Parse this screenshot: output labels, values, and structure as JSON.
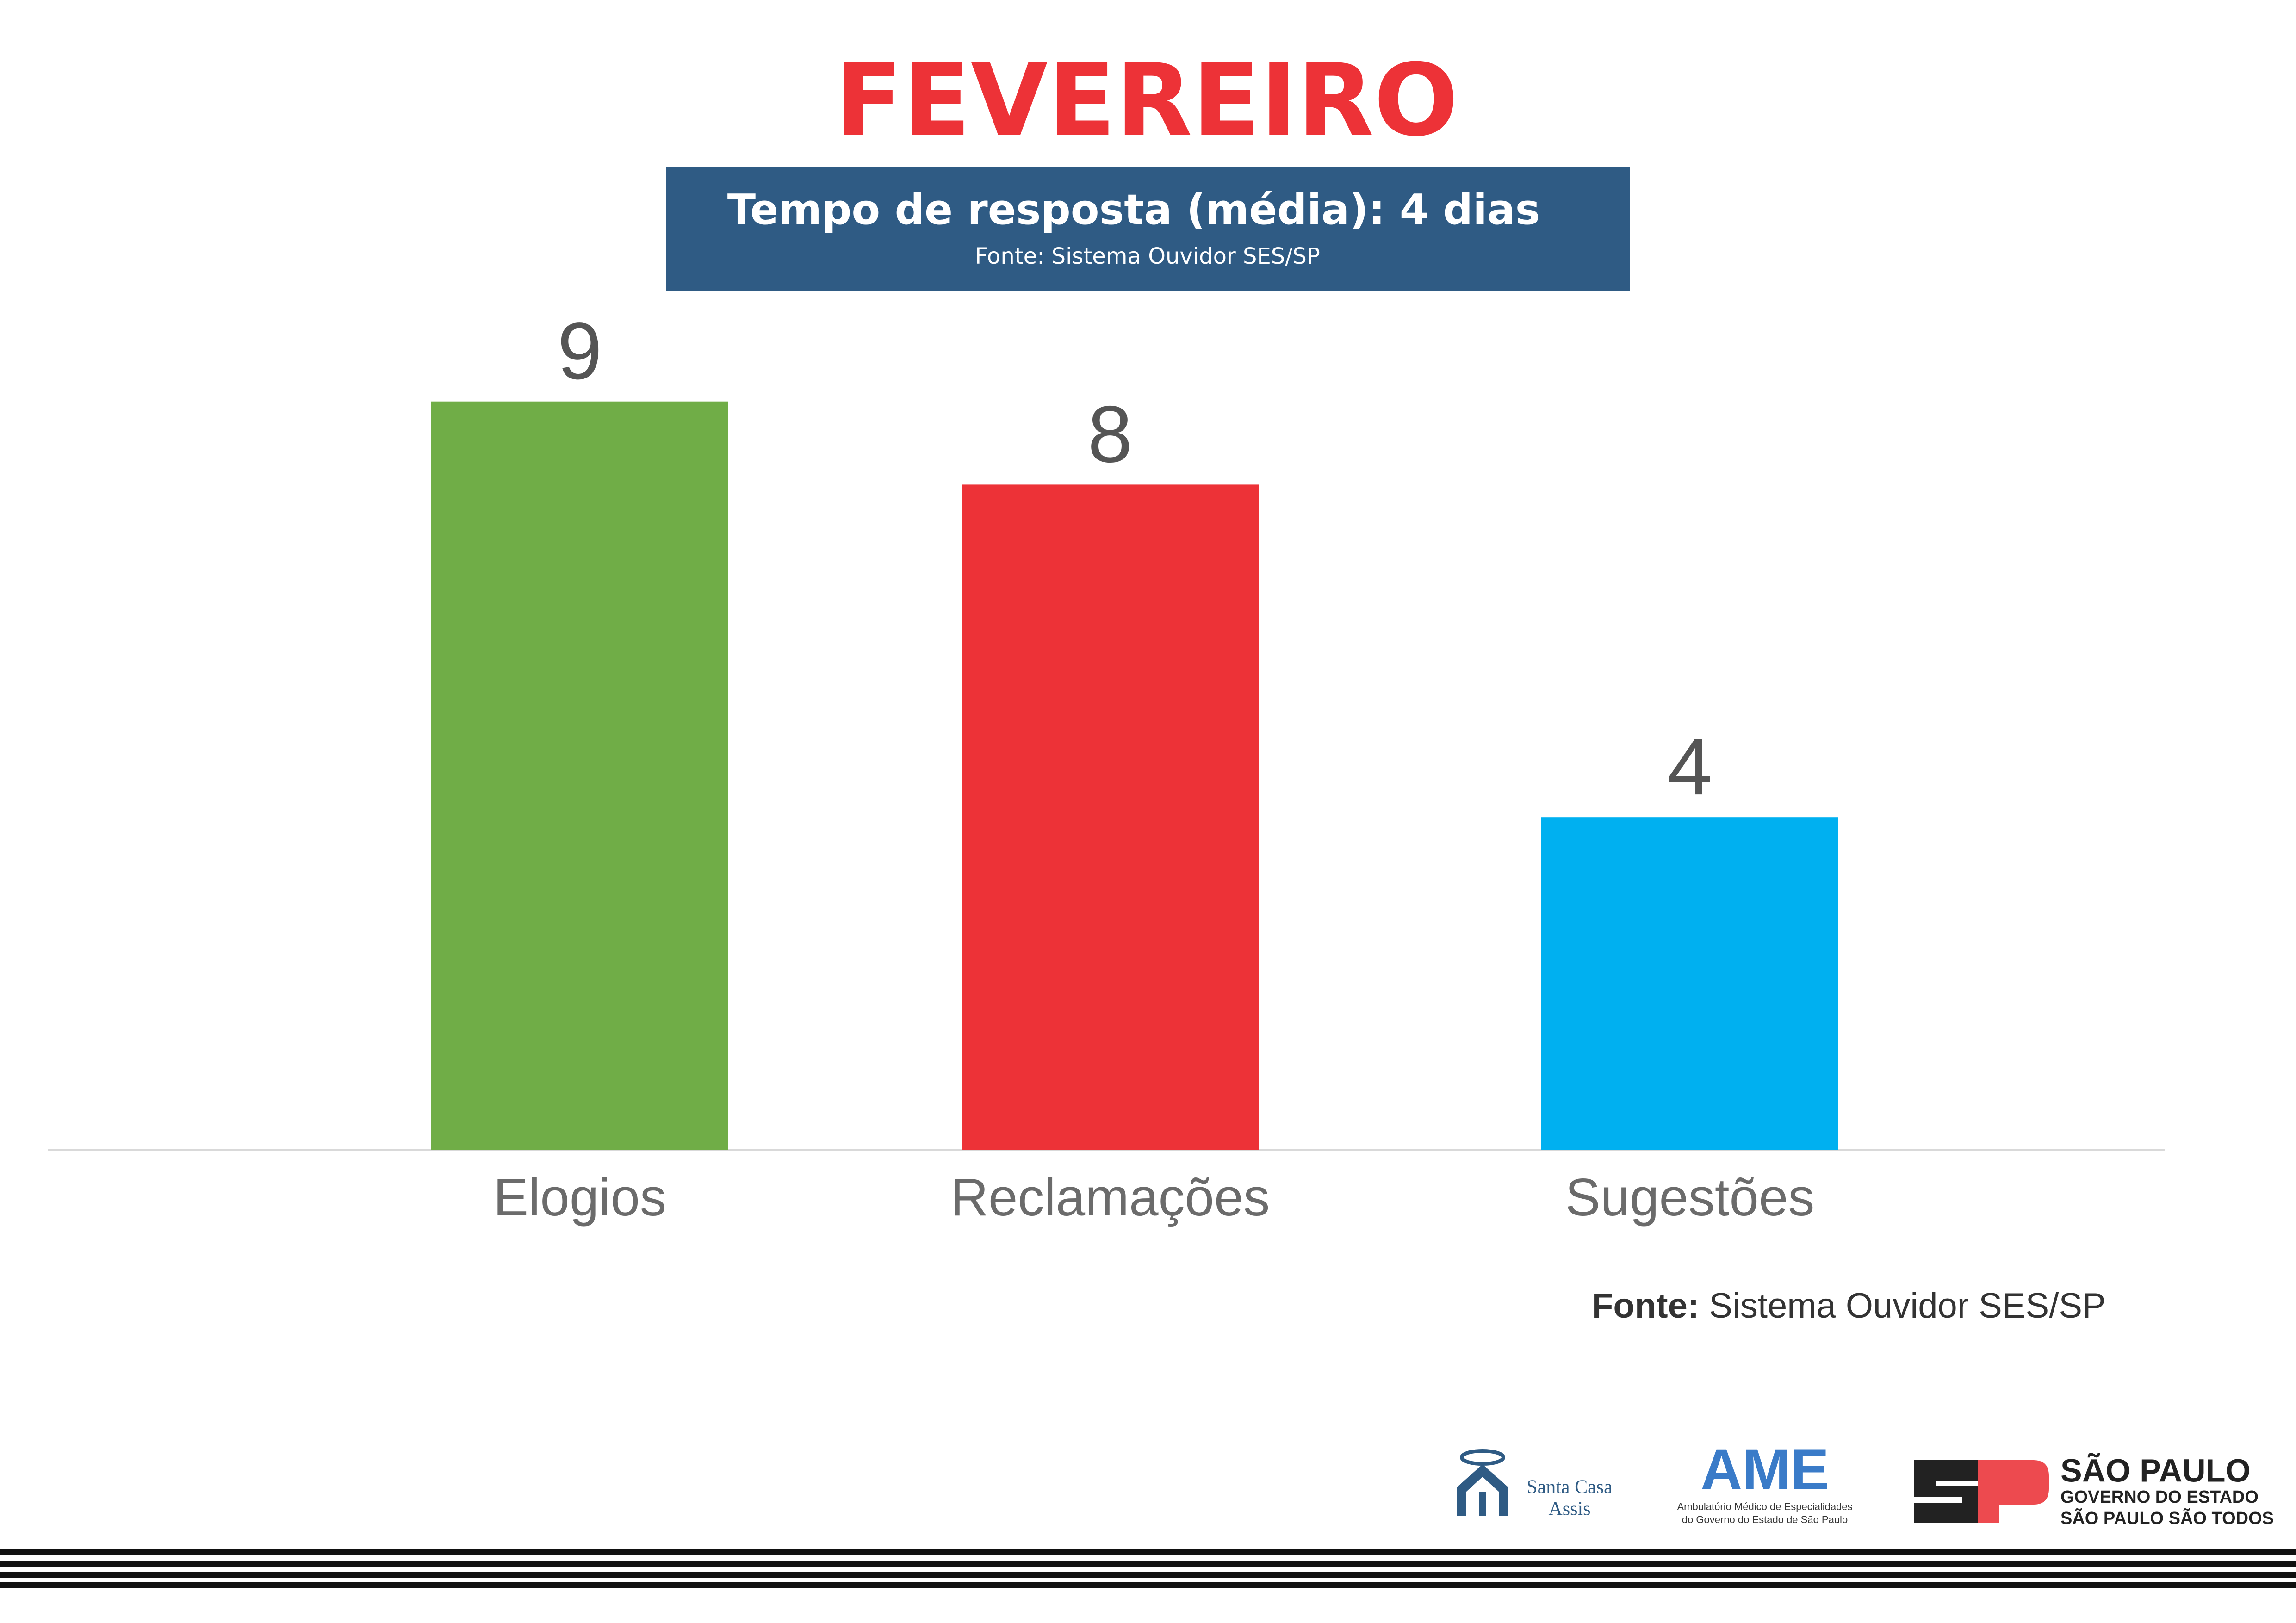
{
  "chart_data": {
    "type": "bar",
    "title": "FEVEREIRO",
    "subtitle": "Tempo de resposta (média): 4 dias",
    "source": "Fonte: Sistema Ouvidor SES/SP",
    "categories": [
      "Elogios",
      "Reclamações",
      "Sugestões"
    ],
    "values": [
      9,
      8,
      4
    ],
    "colors": [
      "#70ad47",
      "#ed3237",
      "#00b0f0"
    ],
    "ylim": [
      0,
      10
    ]
  },
  "footer": {
    "source_label": "Fonte:",
    "source_text": "Sistema Ouvidor SES/SP"
  },
  "logos": {
    "santa_casa": [
      "Santa Casa",
      "Assis"
    ],
    "ame": {
      "title": "AME",
      "lines": [
        "Ambulatório Médico de Especialidades",
        "do Governo do Estado de São Paulo"
      ]
    },
    "sao_paulo": {
      "title": "SÃO PAULO",
      "lines": [
        "GOVERNO DO ESTADO",
        "SÃO PAULO SÃO TODOS"
      ]
    }
  }
}
